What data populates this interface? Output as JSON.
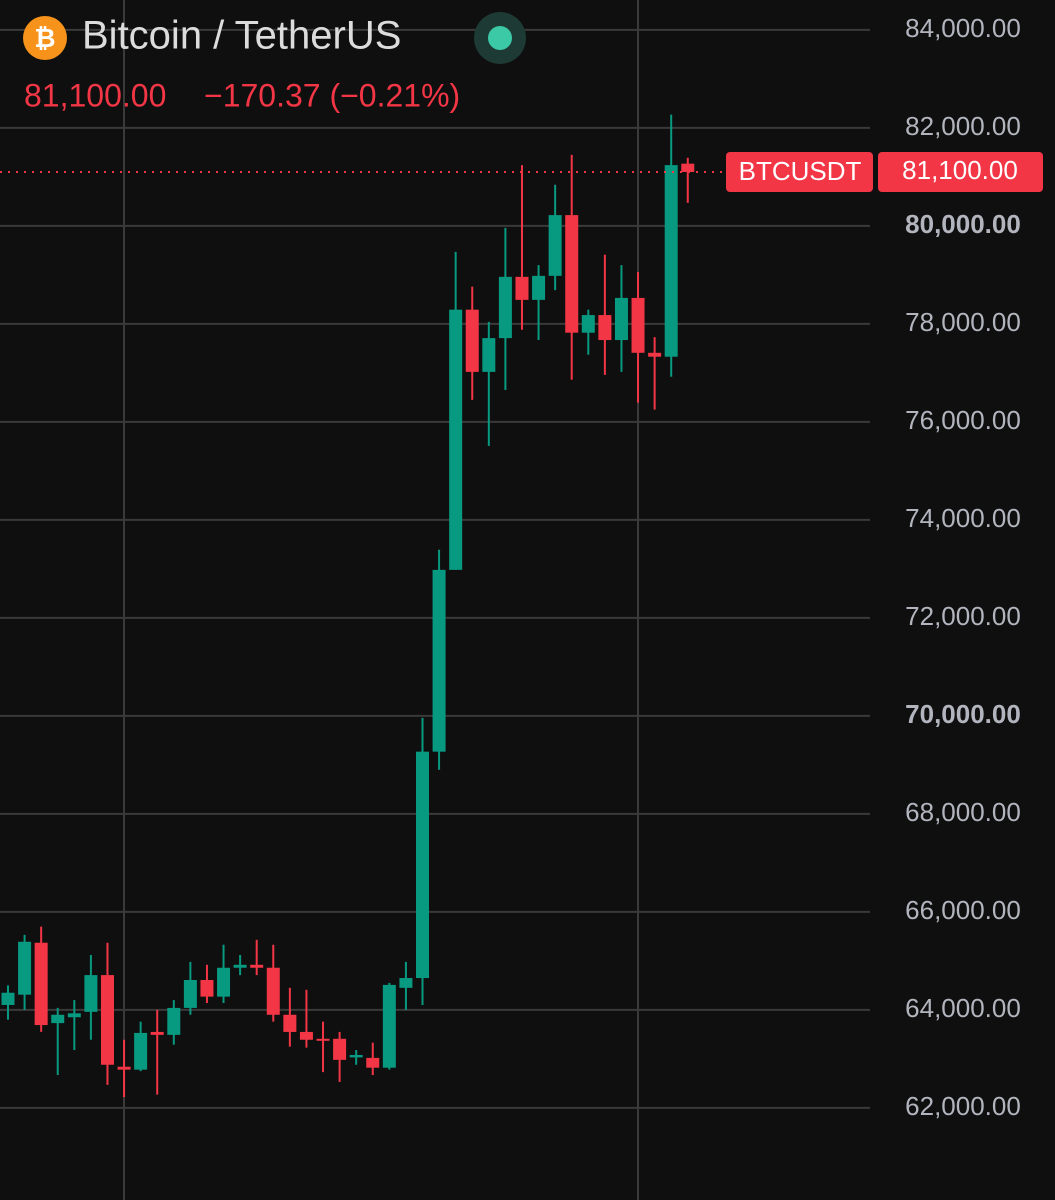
{
  "chart_data": {
    "type": "candlestick",
    "title": "Bitcoin / TetherUS",
    "price": "81,100.00",
    "change": "−170.37 (−0.21%)",
    "symbol": "BTCUSDT",
    "last_price": {
      "value": 81100,
      "label": "81,100.00"
    },
    "up_color": "#089981",
    "down_color": "#f23645",
    "grid": true,
    "ylim": [
      60120,
      84610
    ],
    "yticks": [
      {
        "value": 62000,
        "label": "62,000.00"
      },
      {
        "value": 64000,
        "label": "64,000.00"
      },
      {
        "value": 66000,
        "label": "66,000.00"
      },
      {
        "value": 68000,
        "label": "68,000.00"
      },
      {
        "value": 70000,
        "label": "70,000.00"
      },
      {
        "value": 72000,
        "label": "72,000.00"
      },
      {
        "value": 74000,
        "label": "74,000.00"
      },
      {
        "value": 76000,
        "label": "76,000.00"
      },
      {
        "value": 78000,
        "label": "78,000.00"
      },
      {
        "value": 80000,
        "label": "80,000.00"
      },
      {
        "value": 82000,
        "label": "82,000.00"
      },
      {
        "value": 84000,
        "label": "84,000.00"
      }
    ],
    "open": [
      64100,
      64310,
      65370,
      63730,
      63850,
      63960,
      64710,
      62840,
      62780,
      63550,
      63490,
      64040,
      64610,
      64270,
      64860,
      64920,
      64860,
      63900,
      63550,
      63410,
      63410,
      63030,
      63020,
      62820,
      64450,
      64650,
      69270,
      72980,
      78290,
      77020,
      77710,
      78960,
      78490,
      78980,
      80220,
      77820,
      78180,
      77670,
      78530,
      77410,
      77330,
      81270
    ],
    "high": [
      64500,
      65530,
      65700,
      64040,
      64200,
      65120,
      65370,
      63390,
      63760,
      64000,
      64200,
      64980,
      64920,
      65330,
      65120,
      65430,
      65330,
      64450,
      64410,
      63760,
      63550,
      63180,
      63330,
      64550,
      64980,
      69960,
      73390,
      79470,
      78760,
      78040,
      79960,
      81240,
      79200,
      80840,
      81450,
      78290,
      79410,
      79200,
      79060,
      77730,
      82270,
      81390
    ],
    "low": [
      63800,
      64000,
      63550,
      62670,
      63180,
      63390,
      62470,
      62220,
      62750,
      62270,
      63290,
      63900,
      64140,
      64140,
      64710,
      64710,
      63760,
      63250,
      63230,
      62730,
      62530,
      62880,
      62670,
      62780,
      64000,
      64100,
      68900,
      72980,
      76450,
      75510,
      76650,
      77880,
      77670,
      78690,
      76860,
      77370,
      76960,
      77020,
      76390,
      76250,
      76920,
      80470
    ],
    "close": [
      64350,
      65390,
      63690,
      63900,
      63930,
      64710,
      62880,
      62780,
      63530,
      63490,
      64040,
      64610,
      64270,
      64860,
      64920,
      64860,
      63900,
      63550,
      63390,
      63390,
      62980,
      63080,
      62820,
      64510,
      64650,
      69270,
      72980,
      78290,
      77020,
      77710,
      78960,
      78490,
      78980,
      80220,
      77820,
      78180,
      77670,
      78530,
      77410,
      77330,
      81240,
      81100
    ]
  }
}
